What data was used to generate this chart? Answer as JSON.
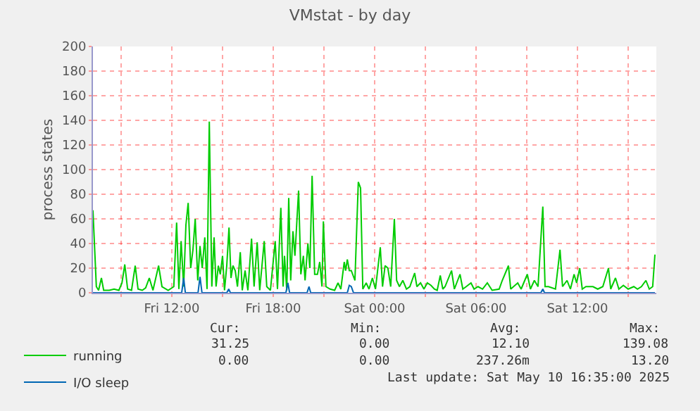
{
  "chart_data": {
    "type": "line",
    "title": "VMstat - by day",
    "ylabel": "process states",
    "xlim": [
      "2025-05-09T07:20",
      "2025-05-10T16:40"
    ],
    "xticks": [
      {
        "value": "2025-05-09T09:00",
        "label": null
      },
      {
        "value": "2025-05-09T12:00",
        "label": "Fri 12:00"
      },
      {
        "value": "2025-05-09T15:00",
        "label": null
      },
      {
        "value": "2025-05-09T18:00",
        "label": "Fri 18:00"
      },
      {
        "value": "2025-05-09T21:00",
        "label": null
      },
      {
        "value": "2025-05-10T00:00",
        "label": "Sat 00:00"
      },
      {
        "value": "2025-05-10T03:00",
        "label": null
      },
      {
        "value": "2025-05-10T06:00",
        "label": "Sat 06:00"
      },
      {
        "value": "2025-05-10T09:00",
        "label": null
      },
      {
        "value": "2025-05-10T12:00",
        "label": "Sat 12:00"
      },
      {
        "value": "2025-05-10T15:00",
        "label": null
      }
    ],
    "ylim": [
      0,
      200
    ],
    "yticks": [
      0,
      20,
      40,
      60,
      80,
      100,
      120,
      140,
      160,
      180,
      200
    ],
    "grid": true,
    "legend": "bottom left",
    "marker": "none",
    "line_style": "solid",
    "series": [
      {
        "name": "running",
        "color": "#00cc00",
        "x": [
          "2025-05-09T07:20",
          "2025-05-09T07:32",
          "2025-05-09T07:40",
          "2025-05-09T07:50",
          "2025-05-09T07:58",
          "2025-05-09T08:18",
          "2025-05-09T08:35",
          "2025-05-09T08:52",
          "2025-05-09T09:03",
          "2025-05-09T09:13",
          "2025-05-09T09:23",
          "2025-05-09T09:37",
          "2025-05-09T09:50",
          "2025-05-09T10:00",
          "2025-05-09T10:15",
          "2025-05-09T10:27",
          "2025-05-09T10:40",
          "2025-05-09T10:53",
          "2025-05-09T11:13",
          "2025-05-09T11:25",
          "2025-05-09T11:47",
          "2025-05-09T12:07",
          "2025-05-09T12:17",
          "2025-05-09T12:25",
          "2025-05-09T12:33",
          "2025-05-09T12:42",
          "2025-05-09T12:50",
          "2025-05-09T12:58",
          "2025-05-09T13:07",
          "2025-05-09T13:15",
          "2025-05-09T13:23",
          "2025-05-09T13:32",
          "2025-05-09T13:40",
          "2025-05-09T13:48",
          "2025-05-09T13:57",
          "2025-05-09T14:05",
          "2025-05-09T14:13",
          "2025-05-09T14:22",
          "2025-05-09T14:30",
          "2025-05-09T14:37",
          "2025-05-09T14:45",
          "2025-05-09T14:52",
          "2025-05-09T15:00",
          "2025-05-09T15:07",
          "2025-05-09T15:15",
          "2025-05-09T15:23",
          "2025-05-09T15:30",
          "2025-05-09T15:37",
          "2025-05-09T15:45",
          "2025-05-09T15:53",
          "2025-05-09T16:03",
          "2025-05-09T16:10",
          "2025-05-09T16:20",
          "2025-05-09T16:30",
          "2025-05-09T16:43",
          "2025-05-09T16:52",
          "2025-05-09T17:03",
          "2025-05-09T17:12",
          "2025-05-09T17:28",
          "2025-05-09T17:37",
          "2025-05-09T17:50",
          "2025-05-09T18:07",
          "2025-05-09T18:15",
          "2025-05-09T18:27",
          "2025-05-09T18:35",
          "2025-05-09T18:40",
          "2025-05-09T18:48",
          "2025-05-09T18:55",
          "2025-05-09T19:02",
          "2025-05-09T19:10",
          "2025-05-09T19:17",
          "2025-05-09T19:30",
          "2025-05-09T19:38",
          "2025-05-09T19:47",
          "2025-05-09T19:53",
          "2025-05-09T20:03",
          "2025-05-09T20:10",
          "2025-05-09T20:18",
          "2025-05-09T20:27",
          "2025-05-09T20:37",
          "2025-05-09T20:45",
          "2025-05-09T20:53",
          "2025-05-09T20:58",
          "2025-05-09T21:07",
          "2025-05-09T21:22",
          "2025-05-09T21:38",
          "2025-05-09T21:50",
          "2025-05-09T22:00",
          "2025-05-09T22:12",
          "2025-05-09T22:17",
          "2025-05-09T22:23",
          "2025-05-09T22:30",
          "2025-05-09T22:37",
          "2025-05-09T22:50",
          "2025-05-09T23:02",
          "2025-05-09T23:10",
          "2025-05-09T23:18",
          "2025-05-09T23:30",
          "2025-05-09T23:40",
          "2025-05-09T23:52",
          "2025-05-10T00:03",
          "2025-05-10T00:20",
          "2025-05-10T00:28",
          "2025-05-10T00:37",
          "2025-05-10T00:47",
          "2025-05-10T00:57",
          "2025-05-10T01:10",
          "2025-05-10T01:18",
          "2025-05-10T01:28",
          "2025-05-10T01:40",
          "2025-05-10T01:53",
          "2025-05-10T02:05",
          "2025-05-10T02:22",
          "2025-05-10T02:30",
          "2025-05-10T02:43",
          "2025-05-10T02:55",
          "2025-05-10T03:07",
          "2025-05-10T03:20",
          "2025-05-10T03:32",
          "2025-05-10T03:42",
          "2025-05-10T03:53",
          "2025-05-10T04:02",
          "2025-05-10T04:10",
          "2025-05-10T04:33",
          "2025-05-10T04:43",
          "2025-05-10T05:03",
          "2025-05-10T05:13",
          "2025-05-10T05:25",
          "2025-05-10T05:42",
          "2025-05-10T05:53",
          "2025-05-10T06:07",
          "2025-05-10T06:23",
          "2025-05-10T06:40",
          "2025-05-10T06:57",
          "2025-05-10T07:22",
          "2025-05-10T07:33",
          "2025-05-10T07:55",
          "2025-05-10T08:03",
          "2025-05-10T08:28",
          "2025-05-10T08:40",
          "2025-05-10T09:02",
          "2025-05-10T09:13",
          "2025-05-10T09:27",
          "2025-05-10T09:40",
          "2025-05-10T09:57",
          "2025-05-10T10:05",
          "2025-05-10T10:17",
          "2025-05-10T10:42",
          "2025-05-10T10:58",
          "2025-05-10T11:07",
          "2025-05-10T11:23",
          "2025-05-10T11:35",
          "2025-05-10T11:48",
          "2025-05-10T11:57",
          "2025-05-10T12:08",
          "2025-05-10T12:17",
          "2025-05-10T12:30",
          "2025-05-10T12:55",
          "2025-05-10T13:12",
          "2025-05-10T13:30",
          "2025-05-10T13:50",
          "2025-05-10T13:58",
          "2025-05-10T14:15",
          "2025-05-10T14:27",
          "2025-05-10T14:43",
          "2025-05-10T15:00",
          "2025-05-10T15:20",
          "2025-05-10T15:33",
          "2025-05-10T15:47",
          "2025-05-10T16:03",
          "2025-05-10T16:15",
          "2025-05-10T16:27",
          "2025-05-10T16:35"
        ],
        "values": [
          67,
          5,
          2,
          12,
          2,
          2,
          3,
          2,
          8,
          23,
          3,
          2,
          22,
          3,
          2,
          4,
          12,
          2,
          22,
          5,
          2,
          5,
          57,
          3,
          42,
          5,
          55,
          73,
          20,
          35,
          60,
          10,
          38,
          20,
          45,
          3,
          139,
          5,
          45,
          5,
          22,
          15,
          30,
          2,
          22,
          53,
          12,
          22,
          18,
          5,
          33,
          2,
          18,
          2,
          44,
          5,
          41,
          2,
          42,
          5,
          2,
          42,
          3,
          69,
          5,
          30,
          2,
          77,
          10,
          50,
          30,
          83,
          15,
          30,
          10,
          40,
          20,
          95,
          15,
          15,
          25,
          5,
          58,
          5,
          3,
          2,
          8,
          3,
          25,
          18,
          27,
          18,
          18,
          10,
          90,
          85,
          3,
          8,
          3,
          12,
          3,
          37,
          5,
          22,
          20,
          5,
          60,
          10,
          5,
          10,
          3,
          5,
          16,
          5,
          8,
          3,
          8,
          6,
          3,
          2,
          14,
          3,
          5,
          18,
          3,
          15,
          3,
          5,
          8,
          3,
          5,
          3,
          8,
          2,
          3,
          10,
          22,
          3,
          8,
          3,
          15,
          3,
          10,
          5,
          70,
          5,
          5,
          3,
          35,
          5,
          10,
          3,
          15,
          8,
          20,
          3,
          5,
          5,
          3,
          5,
          20,
          3,
          12,
          3,
          6,
          3,
          5,
          3,
          5,
          10,
          3,
          5,
          31
        ]
      },
      {
        "name": "I/O sleep",
        "color": "#0066b3",
        "x": [
          "2025-05-09T07:20",
          "2025-05-09T12:35",
          "2025-05-09T12:42",
          "2025-05-09T12:48",
          "2025-05-09T13:33",
          "2025-05-09T13:40",
          "2025-05-09T13:47",
          "2025-05-09T15:15",
          "2025-05-09T15:22",
          "2025-05-09T15:28",
          "2025-05-09T18:45",
          "2025-05-09T18:52",
          "2025-05-09T18:58",
          "2025-05-09T20:00",
          "2025-05-09T20:07",
          "2025-05-09T20:13",
          "2025-05-09T22:23",
          "2025-05-09T22:30",
          "2025-05-09T22:37",
          "2025-05-09T22:45",
          "2025-05-10T09:50",
          "2025-05-10T09:57",
          "2025-05-10T10:03",
          "2025-05-10T16:35"
        ],
        "values": [
          0,
          0,
          12,
          0,
          0,
          13,
          0,
          0,
          3,
          0,
          0,
          8,
          0,
          0,
          5,
          0,
          0,
          6,
          5,
          0,
          0,
          3,
          0,
          0
        ]
      }
    ],
    "annotations": [
      "Cur:",
      "Min:",
      "Avg:",
      "Max:",
      "31.25",
      "0.00",
      "12.10",
      "139.08",
      "0.00",
      "0.00",
      "237.26m",
      "13.20",
      "Last update: Sat May 10 16:35:00 2025"
    ]
  }
}
